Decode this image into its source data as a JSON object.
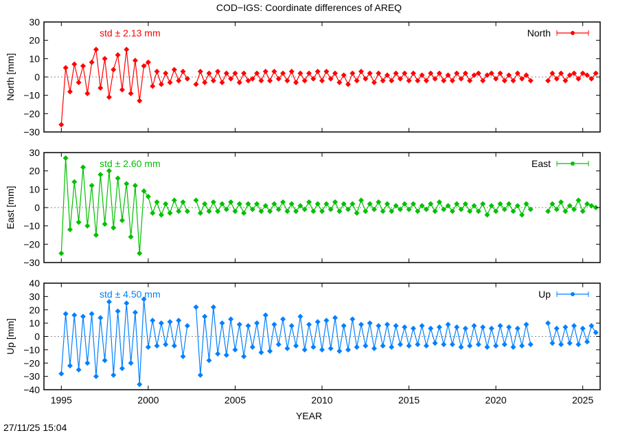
{
  "chart_data": {
    "type": "line",
    "title": "COD−IGS: Coordinate differences of AREQ",
    "xlabel": "YEAR",
    "xlim": [
      1994,
      2026
    ],
    "xticks": [
      1995,
      2000,
      2005,
      2010,
      2015,
      2020,
      2025
    ],
    "timestamp": "27/11/25 15:04",
    "grid": false,
    "legend_position": "top-right",
    "x": [
      1995,
      1995.25,
      1995.5,
      1995.75,
      1996,
      1996.25,
      1996.5,
      1996.75,
      1997,
      1997.25,
      1997.5,
      1997.75,
      1998,
      1998.25,
      1998.5,
      1998.75,
      1999,
      1999.25,
      1999.5,
      1999.75,
      2000,
      2000.25,
      2000.5,
      2000.75,
      2001,
      2001.25,
      2001.5,
      2001.75,
      2002,
      2002.25,
      2002.5,
      2002.75,
      2003,
      2003.25,
      2003.5,
      2003.75,
      2004,
      2004.25,
      2004.5,
      2004.75,
      2005,
      2005.25,
      2005.5,
      2005.75,
      2006,
      2006.25,
      2006.5,
      2006.75,
      2007,
      2007.25,
      2007.5,
      2007.75,
      2008,
      2008.25,
      2008.5,
      2008.75,
      2009,
      2009.25,
      2009.5,
      2009.75,
      2010,
      2010.25,
      2010.5,
      2010.75,
      2011,
      2011.25,
      2011.5,
      2011.75,
      2012,
      2012.25,
      2012.5,
      2012.75,
      2013,
      2013.25,
      2013.5,
      2013.75,
      2014,
      2014.25,
      2014.5,
      2014.75,
      2015,
      2015.25,
      2015.5,
      2015.75,
      2016,
      2016.25,
      2016.5,
      2016.75,
      2017,
      2017.25,
      2017.5,
      2017.75,
      2018,
      2018.25,
      2018.5,
      2018.75,
      2019,
      2019.25,
      2019.5,
      2019.75,
      2020,
      2020.25,
      2020.5,
      2020.75,
      2021,
      2021.25,
      2021.5,
      2021.75,
      2022,
      2022.25,
      2022.5,
      2022.75,
      2023,
      2023.25,
      2023.5,
      2023.75,
      2024,
      2024.25,
      2024.5,
      2024.75,
      2025,
      2025.25,
      2025.5,
      2025.75
    ],
    "panels": [
      {
        "name": "North",
        "ylabel": "North [mm]",
        "ylim": [
          -30,
          30
        ],
        "yticks": [
          -30,
          -20,
          -10,
          0,
          10,
          20,
          30
        ],
        "std_label": "std ± 2.13 mm",
        "color": "#ff0000",
        "values": [
          -26,
          5,
          -8,
          7,
          -3,
          6,
          -9,
          8,
          15,
          -6,
          10,
          -11,
          4,
          12,
          -7,
          15,
          -9,
          9,
          -13,
          6,
          8,
          -5,
          3,
          -4,
          2,
          -3,
          4,
          -2,
          3,
          -1,
          null,
          -4,
          3,
          -3,
          2,
          -2,
          3,
          -3,
          2,
          -1,
          2,
          -3,
          2,
          -2,
          -1,
          2,
          -2,
          3,
          -2,
          3,
          -1,
          2,
          -2,
          3,
          -3,
          2,
          -2,
          2,
          -1,
          3,
          -2,
          3,
          -1,
          2,
          -3,
          1,
          -4,
          2,
          -2,
          3,
          -1,
          2,
          -3,
          2,
          -2,
          1,
          -2,
          2,
          -1,
          2,
          -2,
          2,
          -2,
          1,
          -2,
          2,
          -1,
          2,
          -2,
          1,
          -2,
          2,
          -1,
          2,
          -2,
          1,
          2,
          -2,
          1,
          2,
          -1,
          2,
          -2,
          1,
          -2,
          2,
          -1,
          1,
          -2,
          null,
          null,
          null,
          -2,
          2,
          -1,
          2,
          -2,
          1,
          2,
          -1,
          2,
          1,
          -1,
          2
        ]
      },
      {
        "name": "East",
        "ylabel": "East [mm]",
        "ylim": [
          -30,
          30
        ],
        "yticks": [
          -30,
          -20,
          -10,
          0,
          10,
          20,
          30
        ],
        "std_label": "std ± 2.60 mm",
        "color": "#00c000",
        "values": [
          -25,
          27,
          -12,
          14,
          -8,
          22,
          -10,
          12,
          -15,
          18,
          -9,
          20,
          -11,
          16,
          -7,
          13,
          -16,
          12,
          -25,
          9,
          6,
          -3,
          3,
          -4,
          2,
          -3,
          4,
          -2,
          3,
          -2,
          null,
          4,
          -3,
          2,
          -2,
          3,
          -2,
          2,
          -1,
          3,
          -2,
          2,
          -3,
          2,
          -1,
          2,
          -2,
          1,
          -2,
          2,
          -1,
          3,
          -2,
          2,
          -2,
          1,
          -1,
          3,
          -2,
          2,
          -2,
          2,
          -1,
          3,
          -2,
          2,
          -1,
          2,
          -3,
          4,
          -2,
          2,
          -1,
          3,
          -2,
          2,
          -2,
          1,
          -1,
          2,
          -1,
          2,
          -2,
          1,
          -1,
          2,
          -2,
          3,
          -1,
          1,
          -2,
          2,
          -1,
          2,
          -2,
          1,
          -2,
          2,
          -4,
          1,
          -2,
          2,
          -1,
          2,
          -2,
          1,
          -4,
          2,
          -1,
          null,
          null,
          null,
          -2,
          2,
          -1,
          3,
          -2,
          1,
          -1,
          4,
          -2,
          2,
          1,
          0
        ]
      },
      {
        "name": "Up",
        "ylabel": "Up [mm]",
        "ylim": [
          -40,
          40
        ],
        "yticks": [
          -40,
          -30,
          -20,
          -10,
          0,
          10,
          20,
          30,
          40
        ],
        "std_label": "std ± 4.50 mm",
        "color": "#0080ff",
        "values": [
          -28,
          17,
          -22,
          16,
          -25,
          15,
          -20,
          17,
          -30,
          14,
          -18,
          26,
          -29,
          19,
          -24,
          25,
          -20,
          18,
          -36,
          28,
          -8,
          12,
          -7,
          10,
          -6,
          11,
          -7,
          12,
          -15,
          8,
          null,
          22,
          -29,
          15,
          -18,
          22,
          -13,
          10,
          -14,
          13,
          -10,
          9,
          -15,
          8,
          -8,
          10,
          -12,
          16,
          -11,
          9,
          -6,
          13,
          -9,
          8,
          -7,
          15,
          -10,
          9,
          -8,
          11,
          -10,
          12,
          -9,
          14,
          -11,
          8,
          -10,
          13,
          -8,
          9,
          -7,
          10,
          -9,
          8,
          -7,
          9,
          -8,
          8,
          -6,
          7,
          -7,
          6,
          -6,
          8,
          -7,
          6,
          -5,
          7,
          -6,
          9,
          -6,
          7,
          -8,
          6,
          -7,
          8,
          -6,
          7,
          -8,
          6,
          -7,
          8,
          -6,
          7,
          -8,
          6,
          -7,
          9,
          -6,
          null,
          null,
          null,
          10,
          -5,
          6,
          -6,
          7,
          -5,
          8,
          -6,
          6,
          -4,
          8,
          3
        ]
      }
    ]
  }
}
